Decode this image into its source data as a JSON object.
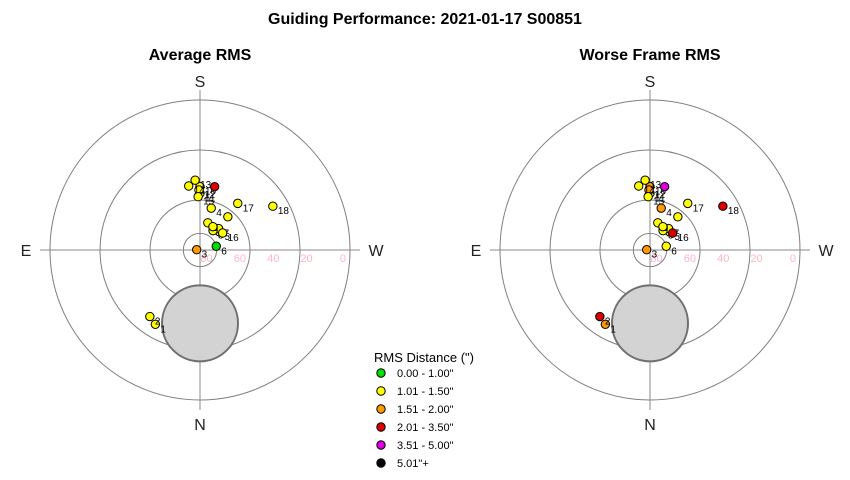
{
  "figure": {
    "title": "Guiding Performance: 2021-01-17 S00851"
  },
  "chart_data": [
    {
      "type": "scatter",
      "title": "Average RMS",
      "directions": {
        "top": "S",
        "bottom": "N",
        "left": "E",
        "right": "W"
      },
      "altitude_ticks": [
        "80",
        "60",
        "40",
        "20",
        "0"
      ],
      "points": [
        {
          "label": "1",
          "az": 329,
          "alt": 38,
          "category": 1
        },
        {
          "label": "2",
          "az": 323,
          "alt": 40,
          "category": 1
        },
        {
          "label": "3",
          "az": 265,
          "alt": 88,
          "category": 2
        },
        {
          "label": "4",
          "az": 165,
          "alt": 64,
          "category": 1
        },
        {
          "label": "5",
          "az": 133,
          "alt": 74,
          "category": 1
        },
        {
          "label": "6",
          "az": 103,
          "alt": 80,
          "category": 0
        },
        {
          "label": "7",
          "az": 139,
          "alt": 73,
          "category": 1
        },
        {
          "label": "8",
          "az": 146,
          "alt": 76,
          "category": 1
        },
        {
          "label": "9",
          "az": 164,
          "alt": 73,
          "category": 1
        },
        {
          "label": "10",
          "az": 180,
          "alt": 52,
          "category": 1
        },
        {
          "label": "11",
          "az": 180,
          "alt": 56,
          "category": 1
        },
        {
          "label": "12",
          "az": 181,
          "alt": 54,
          "category": 1
        },
        {
          "label": "13",
          "az": 184,
          "alt": 48,
          "category": 1
        },
        {
          "label": "14",
          "az": 190,
          "alt": 51,
          "category": 1
        },
        {
          "label": "15",
          "az": 182,
          "alt": 58,
          "category": 1
        },
        {
          "label": "16",
          "az": 127,
          "alt": 73,
          "category": 1
        },
        {
          "label": "17",
          "az": 141,
          "alt": 54,
          "category": 1
        },
        {
          "label": "18",
          "az": 121,
          "alt": 39,
          "category": 1
        },
        {
          "label": "",
          "az": 167,
          "alt": 51,
          "category": 3
        },
        {
          "label": "",
          "az": 140,
          "alt": 64,
          "category": 1
        },
        {
          "label": "",
          "az": 151,
          "alt": 74,
          "category": 1
        }
      ]
    },
    {
      "type": "scatter",
      "title": "Worse Frame RMS",
      "directions": {
        "top": "S",
        "bottom": "N",
        "left": "E",
        "right": "W"
      },
      "altitude_ticks": [
        "80",
        "60",
        "40",
        "20",
        "0"
      ],
      "points": [
        {
          "label": "1",
          "az": 329,
          "alt": 38,
          "category": 2
        },
        {
          "label": "2",
          "az": 323,
          "alt": 40,
          "category": 3
        },
        {
          "label": "3",
          "az": 265,
          "alt": 88,
          "category": 2
        },
        {
          "label": "4",
          "az": 165,
          "alt": 64,
          "category": 2
        },
        {
          "label": "5",
          "az": 133,
          "alt": 74,
          "category": 1
        },
        {
          "label": "6",
          "az": 103,
          "alt": 80,
          "category": 1
        },
        {
          "label": "7",
          "az": 139,
          "alt": 73,
          "category": 1
        },
        {
          "label": "8",
          "az": 146,
          "alt": 76,
          "category": 1
        },
        {
          "label": "9",
          "az": 164,
          "alt": 73,
          "category": 1
        },
        {
          "label": "10",
          "az": 180,
          "alt": 52,
          "category": 2
        },
        {
          "label": "11",
          "az": 180,
          "alt": 56,
          "category": 1
        },
        {
          "label": "12",
          "az": 181,
          "alt": 54,
          "category": 2
        },
        {
          "label": "13",
          "az": 184,
          "alt": 48,
          "category": 1
        },
        {
          "label": "14",
          "az": 190,
          "alt": 51,
          "category": 1
        },
        {
          "label": "15",
          "az": 182,
          "alt": 58,
          "category": 1
        },
        {
          "label": "16",
          "az": 127,
          "alt": 73,
          "category": 3
        },
        {
          "label": "17",
          "az": 141,
          "alt": 54,
          "category": 1
        },
        {
          "label": "18",
          "az": 121,
          "alt": 39,
          "category": 3
        },
        {
          "label": "",
          "az": 167,
          "alt": 51,
          "category": 4
        },
        {
          "label": "",
          "az": 140,
          "alt": 64,
          "category": 1
        },
        {
          "label": "",
          "az": 151,
          "alt": 74,
          "category": 1
        }
      ]
    }
  ],
  "legend": {
    "title": "RMS Distance (\")",
    "items": [
      {
        "label": "0.00 - 1.00\"",
        "color": "#00dd00"
      },
      {
        "label": "1.01 - 1.50\"",
        "color": "#ffff00"
      },
      {
        "label": "1.51 - 2.00\"",
        "color": "#ff9900"
      },
      {
        "label": "2.01 - 3.50\"",
        "color": "#dd0000"
      },
      {
        "label": "3.51 - 5.00\"",
        "color": "#dd00dd"
      },
      {
        "label": "5.01\"+",
        "color": "#000000"
      }
    ]
  },
  "moon": {
    "az": 0,
    "alt": 70
  }
}
